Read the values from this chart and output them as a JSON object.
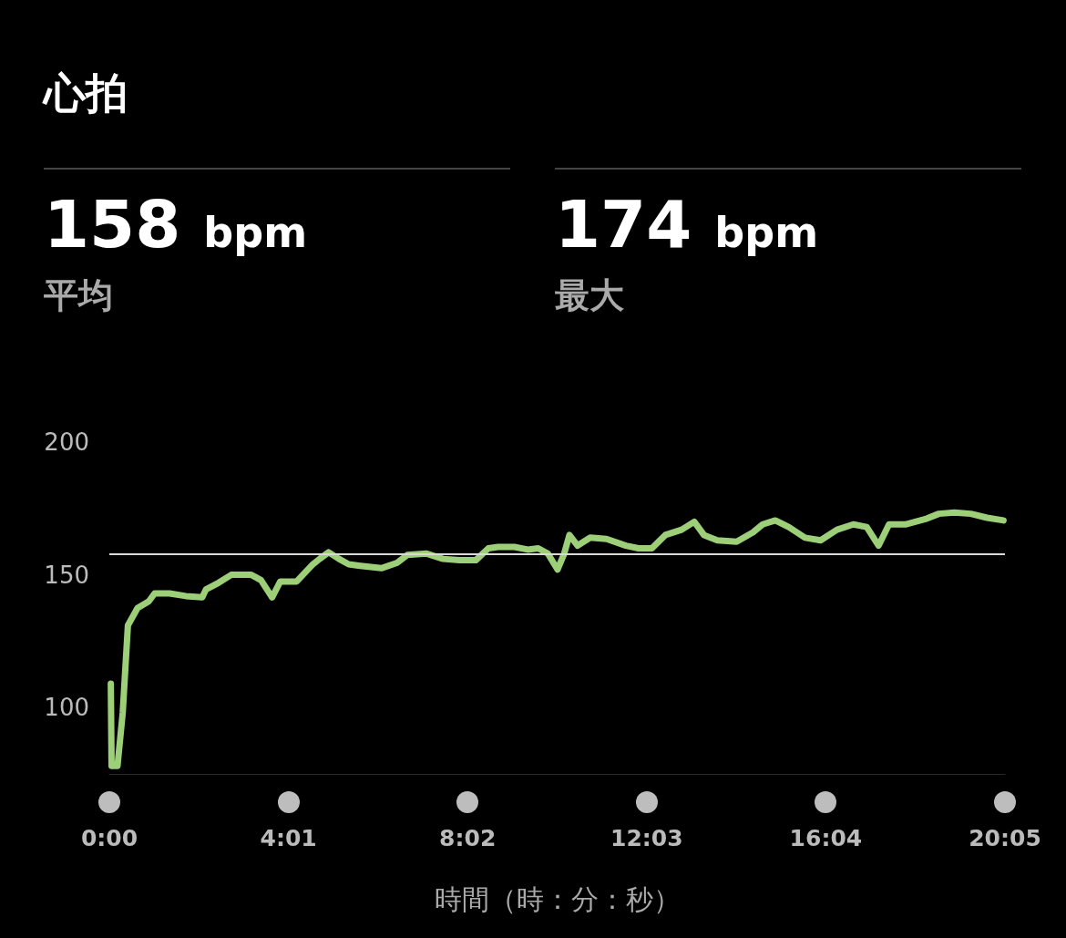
{
  "chart_data": {
    "type": "line",
    "title": "心拍",
    "xlabel": "時間（時：分：秒）",
    "annotations": [
      "158 bpm",
      "平均",
      "174 bpm",
      "最大"
    ],
    "xlim": [
      0,
      1205
    ],
    "xticks": [
      {
        "value": 0,
        "label": "0:00"
      },
      {
        "value": 241,
        "label": "4:01"
      },
      {
        "value": 482,
        "label": "8:02"
      },
      {
        "value": 723,
        "label": "12:03"
      },
      {
        "value": 964,
        "label": "16:04"
      },
      {
        "value": 1205,
        "label": "20:05"
      }
    ],
    "ylim": [
      75,
      200
    ],
    "yticks": [
      100,
      150,
      200
    ],
    "grid": false,
    "marker": "none",
    "line_style": "solid",
    "ref_lines": [
      {
        "axis": "y",
        "value": 158,
        "color": "#d9d9d9"
      }
    ],
    "series": [
      {
        "color": "#9ccf78",
        "x": [
          2,
          3,
          11,
          18,
          25,
          38,
          53,
          61,
          81,
          103,
          125,
          130,
          147,
          164,
          191,
          204,
          219,
          230,
          252,
          274,
          283,
          295,
          309,
          322,
          335,
          366,
          387,
          401,
          427,
          449,
          471,
          493,
          510,
          523,
          545,
          563,
          577,
          590,
          603,
          612,
          619,
          630,
          647,
          669,
          695,
          712,
          730,
          748,
          770,
          787,
          800,
          818,
          844,
          866,
          879,
          896,
          914,
          936,
          957,
          979,
          1001,
          1019,
          1035,
          1049,
          1071,
          1098,
          1116,
          1137,
          1159,
          1181,
          1203
        ],
        "values": [
          109,
          78,
          78,
          98,
          131,
          137.5,
          140,
          143,
          143,
          142,
          141.5,
          144.5,
          147,
          150,
          150,
          148,
          141.5,
          147.5,
          147.5,
          154,
          156,
          158.5,
          156,
          154,
          153.5,
          152.5,
          154.5,
          157.5,
          158,
          156,
          155.5,
          155.5,
          160,
          160.5,
          160.5,
          159.5,
          160,
          158,
          152,
          158,
          165,
          161,
          164,
          163.5,
          161,
          160,
          160,
          165,
          167,
          170,
          165,
          163,
          162.5,
          166,
          169,
          170.5,
          168,
          164,
          163,
          167,
          169,
          168,
          161,
          169,
          169,
          171,
          173,
          173.5,
          173,
          171.5,
          170.5
        ]
      }
    ]
  }
}
